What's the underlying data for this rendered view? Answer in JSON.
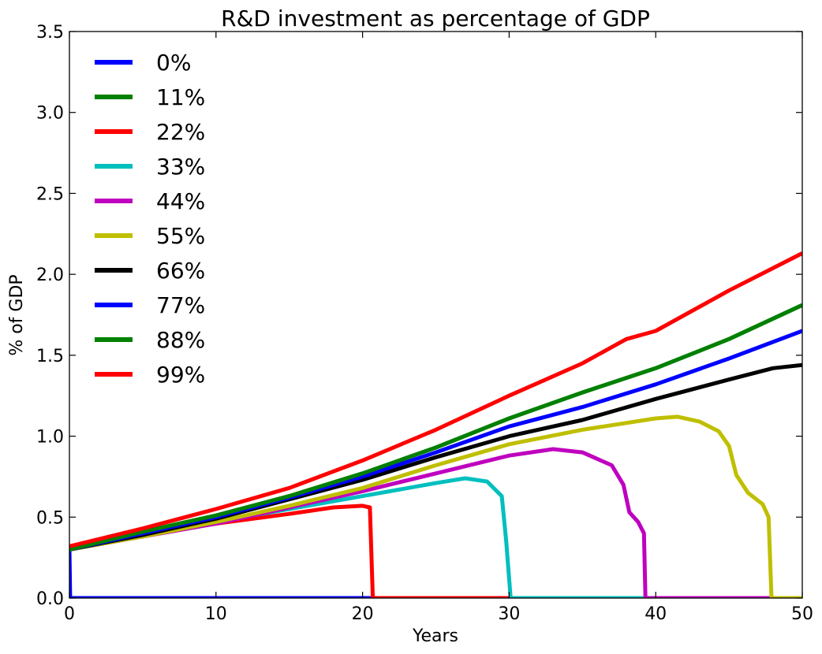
{
  "chart_data": {
    "type": "line",
    "title": "R&D investment as percentage of  GDP",
    "xlabel": "Years",
    "ylabel": "% of GDP",
    "xlim": [
      0,
      50
    ],
    "ylim": [
      0,
      3.5
    ],
    "xticks": [
      "0",
      "10",
      "20",
      "30",
      "40",
      "50"
    ],
    "yticks": [
      "0.0",
      "0.5",
      "1.0",
      "1.5",
      "2.0",
      "2.5",
      "3.0",
      "3.5"
    ],
    "xtick_values": [
      0,
      10,
      20,
      30,
      40,
      50
    ],
    "ytick_values": [
      0,
      0.5,
      1.0,
      1.5,
      2.0,
      2.5,
      3.0,
      3.5
    ],
    "grid": false,
    "legend_position": "upper-left",
    "series": [
      {
        "name": "0%",
        "color": "#0000ff",
        "points": [
          [
            0,
            0.3
          ],
          [
            0.05,
            0.0
          ],
          [
            50,
            0.0
          ]
        ]
      },
      {
        "name": "11%",
        "color": "#008000",
        "points": [
          [
            0,
            0.3
          ],
          [
            5,
            0.41
          ],
          [
            10,
            0.51
          ],
          [
            15,
            0.63
          ],
          [
            20,
            0.77
          ],
          [
            25,
            0.93
          ],
          [
            30,
            1.11
          ],
          [
            35,
            1.27
          ],
          [
            40,
            1.42
          ],
          [
            45,
            1.6
          ],
          [
            50,
            1.81
          ]
        ]
      },
      {
        "name": "22%",
        "color": "#ff0000",
        "points": [
          [
            0,
            0.3
          ],
          [
            5,
            0.39
          ],
          [
            10,
            0.46
          ],
          [
            15,
            0.52
          ],
          [
            18,
            0.56
          ],
          [
            20,
            0.57
          ],
          [
            20.5,
            0.56
          ],
          [
            20.7,
            0.0
          ],
          [
            50,
            0.0
          ]
        ]
      },
      {
        "name": "33%",
        "color": "#00bfbf",
        "points": [
          [
            0,
            0.3
          ],
          [
            5,
            0.39
          ],
          [
            10,
            0.47
          ],
          [
            15,
            0.55
          ],
          [
            20,
            0.63
          ],
          [
            25,
            0.71
          ],
          [
            27,
            0.74
          ],
          [
            28.5,
            0.72
          ],
          [
            29.5,
            0.63
          ],
          [
            29.8,
            0.35
          ],
          [
            30.1,
            0.0
          ],
          [
            50,
            0.0
          ]
        ]
      },
      {
        "name": "44%",
        "color": "#bf00bf",
        "points": [
          [
            0,
            0.3
          ],
          [
            5,
            0.38
          ],
          [
            10,
            0.46
          ],
          [
            15,
            0.56
          ],
          [
            20,
            0.66
          ],
          [
            25,
            0.77
          ],
          [
            30,
            0.88
          ],
          [
            33,
            0.92
          ],
          [
            35,
            0.9
          ],
          [
            37,
            0.82
          ],
          [
            37.8,
            0.7
          ],
          [
            38.2,
            0.53
          ],
          [
            38.8,
            0.47
          ],
          [
            39.2,
            0.4
          ],
          [
            39.3,
            0.0
          ],
          [
            50,
            0.0
          ]
        ]
      },
      {
        "name": "55%",
        "color": "#bfbf00",
        "points": [
          [
            0,
            0.3
          ],
          [
            5,
            0.38
          ],
          [
            10,
            0.47
          ],
          [
            15,
            0.57
          ],
          [
            20,
            0.68
          ],
          [
            25,
            0.82
          ],
          [
            30,
            0.95
          ],
          [
            35,
            1.04
          ],
          [
            40,
            1.11
          ],
          [
            41.5,
            1.12
          ],
          [
            43,
            1.09
          ],
          [
            44.3,
            1.03
          ],
          [
            45,
            0.94
          ],
          [
            45.5,
            0.76
          ],
          [
            46.3,
            0.65
          ],
          [
            47.3,
            0.58
          ],
          [
            47.7,
            0.5
          ],
          [
            47.9,
            0.0
          ],
          [
            50,
            0.0
          ]
        ]
      },
      {
        "name": "66%",
        "color": "#000000",
        "points": [
          [
            0,
            0.3
          ],
          [
            5,
            0.39
          ],
          [
            10,
            0.49
          ],
          [
            15,
            0.61
          ],
          [
            20,
            0.73
          ],
          [
            25,
            0.87
          ],
          [
            30,
            1.0
          ],
          [
            35,
            1.1
          ],
          [
            40,
            1.23
          ],
          [
            45,
            1.35
          ],
          [
            48,
            1.42
          ],
          [
            50,
            1.44
          ]
        ]
      },
      {
        "name": "77%",
        "color": "#0000ff",
        "points": [
          [
            0,
            0.3
          ],
          [
            5,
            0.4
          ],
          [
            10,
            0.5
          ],
          [
            15,
            0.62
          ],
          [
            20,
            0.75
          ],
          [
            25,
            0.9
          ],
          [
            30,
            1.06
          ],
          [
            35,
            1.18
          ],
          [
            40,
            1.32
          ],
          [
            45,
            1.48
          ],
          [
            50,
            1.65
          ]
        ]
      },
      {
        "name": "88%",
        "color": "#008000",
        "points": [
          [
            0,
            0.3
          ],
          [
            5,
            0.41
          ],
          [
            10,
            0.51
          ],
          [
            15,
            0.63
          ],
          [
            20,
            0.77
          ],
          [
            25,
            0.93
          ],
          [
            30,
            1.11
          ],
          [
            35,
            1.27
          ],
          [
            40,
            1.42
          ],
          [
            45,
            1.6
          ],
          [
            50,
            1.81
          ]
        ]
      },
      {
        "name": "99%",
        "color": "#ff0000",
        "points": [
          [
            0,
            0.32
          ],
          [
            5,
            0.43
          ],
          [
            10,
            0.55
          ],
          [
            15,
            0.68
          ],
          [
            20,
            0.85
          ],
          [
            25,
            1.04
          ],
          [
            30,
            1.25
          ],
          [
            35,
            1.45
          ],
          [
            38,
            1.6
          ],
          [
            40,
            1.65
          ],
          [
            45,
            1.9
          ],
          [
            50,
            2.13
          ]
        ]
      }
    ]
  }
}
